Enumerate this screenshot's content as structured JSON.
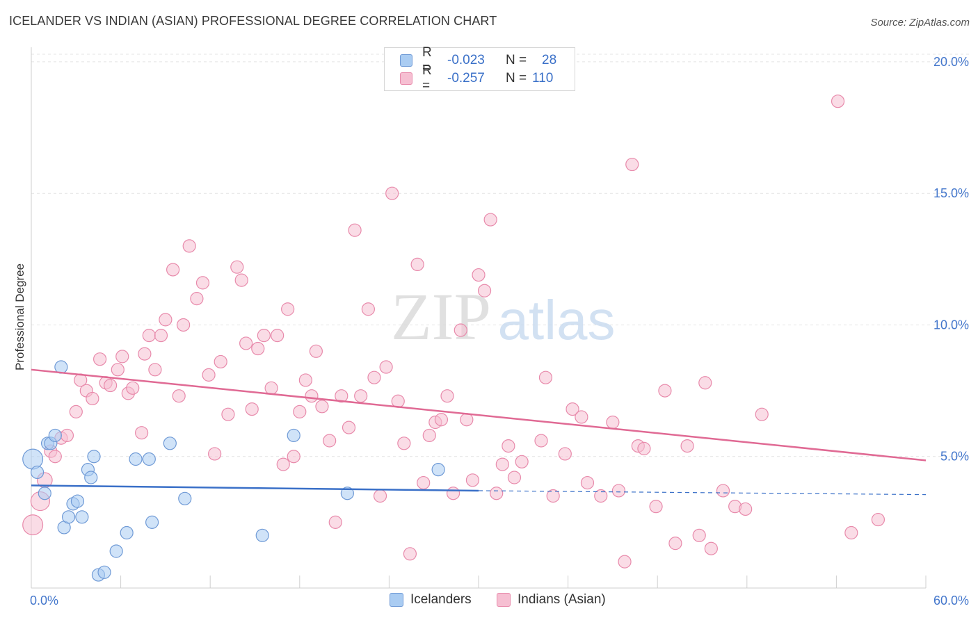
{
  "title": "ICELANDER VS INDIAN (ASIAN) PROFESSIONAL DEGREE CORRELATION CHART",
  "source": "Source: ZipAtlas.com",
  "watermark": {
    "zip": "ZIP",
    "atlas": "atlas"
  },
  "legend": {
    "rows": [
      {
        "r_label": "R =",
        "r_value": "-0.023",
        "n_label": "N =",
        "n_value": "28"
      },
      {
        "r_label": "R =",
        "r_value": "-0.257",
        "n_label": "N =",
        "n_value": "110"
      }
    ]
  },
  "bottom_legend": {
    "icelanders": "Icelanders",
    "indians": "Indians (Asian)"
  },
  "colors": {
    "blue_fill": "#aaccf2",
    "blue_stroke": "#6f9ad6",
    "blue_line": "#3a70c8",
    "pink_fill": "#f6bfd2",
    "pink_stroke": "#e88aab",
    "pink_line": "#e06a94",
    "tick_text": "#4477cc"
  },
  "chart_data": {
    "type": "scatter",
    "title": "ICELANDER VS INDIAN (ASIAN) PROFESSIONAL DEGREE CORRELATION CHART",
    "ylabel": "Professional Degree",
    "xlim": [
      0,
      60
    ],
    "ylim": [
      0,
      20.5
    ],
    "x_tick_labels": [
      "0.0%",
      "60.0%"
    ],
    "y_ticks": [
      5,
      10,
      15,
      20
    ],
    "y_tick_labels": [
      "5.0%",
      "10.0%",
      "15.0%",
      "20.0%"
    ],
    "grid": "horizontal dashed",
    "legend_position": "top-center",
    "series": [
      {
        "name": "Icelanders",
        "r": -0.023,
        "n": 28,
        "trend": {
          "x": [
            0,
            30
          ],
          "y": [
            3.9,
            3.7
          ],
          "dashed_extension_to_x": 60,
          "dashed_end_y": 3.55
        },
        "points": [
          [
            0.1,
            4.9,
            1.6
          ],
          [
            0.4,
            4.4,
            1
          ],
          [
            0.9,
            3.6,
            1
          ],
          [
            1.1,
            5.5,
            1
          ],
          [
            1.3,
            5.5,
            1
          ],
          [
            1.6,
            5.8,
            1
          ],
          [
            2.0,
            8.4,
            1
          ],
          [
            2.2,
            2.3,
            1
          ],
          [
            2.5,
            2.7,
            1
          ],
          [
            2.8,
            3.2,
            1
          ],
          [
            3.1,
            3.3,
            1
          ],
          [
            3.4,
            2.7,
            1
          ],
          [
            3.8,
            4.5,
            1
          ],
          [
            4.0,
            4.2,
            1
          ],
          [
            4.2,
            5.0,
            1
          ],
          [
            4.5,
            0.5,
            1
          ],
          [
            4.9,
            0.6,
            1
          ],
          [
            5.7,
            1.4,
            1
          ],
          [
            6.4,
            2.1,
            1
          ],
          [
            7.0,
            4.9,
            1
          ],
          [
            7.9,
            4.9,
            1
          ],
          [
            8.1,
            2.5,
            1
          ],
          [
            9.3,
            5.5,
            1
          ],
          [
            10.3,
            3.4,
            1
          ],
          [
            15.5,
            2.0,
            1
          ],
          [
            17.6,
            5.8,
            1
          ],
          [
            21.2,
            3.6,
            1
          ],
          [
            27.3,
            4.5,
            1
          ]
        ]
      },
      {
        "name": "Indians (Asian)",
        "r": -0.257,
        "n": 110,
        "trend": {
          "x": [
            0,
            60
          ],
          "y": [
            8.3,
            4.85
          ]
        },
        "points": [
          [
            0.1,
            2.4,
            1.6
          ],
          [
            0.6,
            3.3,
            1.5
          ],
          [
            0.9,
            4.1,
            1.2
          ],
          [
            1.3,
            5.2,
            1
          ],
          [
            1.6,
            5.0,
            1
          ],
          [
            2.0,
            5.7,
            1
          ],
          [
            2.4,
            5.8,
            1
          ],
          [
            3.0,
            6.7,
            1
          ],
          [
            3.3,
            7.9,
            1
          ],
          [
            3.7,
            7.5,
            1
          ],
          [
            4.1,
            7.2,
            1
          ],
          [
            4.6,
            8.7,
            1
          ],
          [
            5.0,
            7.8,
            1
          ],
          [
            5.3,
            7.7,
            1
          ],
          [
            5.8,
            8.3,
            1
          ],
          [
            6.1,
            8.8,
            1
          ],
          [
            6.5,
            7.4,
            1
          ],
          [
            6.8,
            7.6,
            1
          ],
          [
            7.4,
            5.9,
            1
          ],
          [
            7.6,
            8.9,
            1
          ],
          [
            7.9,
            9.6,
            1
          ],
          [
            8.3,
            8.3,
            1
          ],
          [
            8.7,
            9.6,
            1
          ],
          [
            9.0,
            10.2,
            1
          ],
          [
            9.5,
            12.1,
            1
          ],
          [
            9.9,
            7.3,
            1
          ],
          [
            10.2,
            10.0,
            1
          ],
          [
            10.6,
            13.0,
            1
          ],
          [
            11.1,
            11.0,
            1
          ],
          [
            11.5,
            11.6,
            1
          ],
          [
            11.9,
            8.1,
            1
          ],
          [
            12.3,
            5.1,
            1
          ],
          [
            12.7,
            8.6,
            1
          ],
          [
            13.2,
            6.6,
            1
          ],
          [
            13.8,
            12.2,
            1
          ],
          [
            14.1,
            11.7,
            1
          ],
          [
            14.4,
            9.3,
            1
          ],
          [
            14.8,
            6.8,
            1
          ],
          [
            15.2,
            9.1,
            1
          ],
          [
            15.6,
            9.6,
            1
          ],
          [
            16.1,
            7.6,
            1
          ],
          [
            16.5,
            9.6,
            1
          ],
          [
            16.9,
            4.7,
            1
          ],
          [
            17.2,
            10.6,
            1
          ],
          [
            17.6,
            5.0,
            1
          ],
          [
            18.0,
            6.7,
            1
          ],
          [
            18.4,
            7.9,
            1
          ],
          [
            18.8,
            7.3,
            1
          ],
          [
            19.1,
            9.0,
            1
          ],
          [
            19.5,
            6.9,
            1
          ],
          [
            20.0,
            5.6,
            1
          ],
          [
            20.4,
            2.5,
            1
          ],
          [
            20.8,
            7.3,
            1
          ],
          [
            21.3,
            6.1,
            1
          ],
          [
            21.7,
            13.6,
            1
          ],
          [
            22.1,
            7.3,
            1
          ],
          [
            22.6,
            10.6,
            1
          ],
          [
            23.0,
            8.0,
            1
          ],
          [
            23.4,
            3.5,
            1
          ],
          [
            23.8,
            8.4,
            1
          ],
          [
            24.2,
            15.0,
            1
          ],
          [
            24.6,
            7.1,
            1
          ],
          [
            25.0,
            5.5,
            1
          ],
          [
            25.4,
            1.3,
            1
          ],
          [
            25.9,
            12.3,
            1
          ],
          [
            26.3,
            4.0,
            1
          ],
          [
            26.7,
            5.8,
            1
          ],
          [
            27.1,
            6.3,
            1
          ],
          [
            27.5,
            6.4,
            1
          ],
          [
            27.9,
            7.3,
            1
          ],
          [
            28.3,
            3.6,
            1
          ],
          [
            28.8,
            9.8,
            1
          ],
          [
            29.2,
            6.4,
            1
          ],
          [
            29.6,
            4.1,
            1
          ],
          [
            30.0,
            11.9,
            1
          ],
          [
            30.4,
            11.3,
            1
          ],
          [
            30.8,
            14.0,
            1
          ],
          [
            31.2,
            3.6,
            1
          ],
          [
            31.6,
            4.7,
            1
          ],
          [
            32.0,
            5.4,
            1
          ],
          [
            32.4,
            4.2,
            1
          ],
          [
            32.9,
            4.8,
            1
          ],
          [
            34.2,
            5.6,
            1
          ],
          [
            34.5,
            8.0,
            1
          ],
          [
            35.0,
            3.5,
            1
          ],
          [
            35.8,
            5.1,
            1
          ],
          [
            36.3,
            6.8,
            1
          ],
          [
            36.9,
            6.5,
            1
          ],
          [
            37.3,
            4.0,
            1
          ],
          [
            38.2,
            3.5,
            1
          ],
          [
            39.0,
            6.3,
            1
          ],
          [
            39.4,
            3.7,
            1
          ],
          [
            39.8,
            1.0,
            1
          ],
          [
            40.3,
            16.1,
            1
          ],
          [
            40.7,
            5.4,
            1
          ],
          [
            41.1,
            5.3,
            1
          ],
          [
            41.9,
            3.1,
            1
          ],
          [
            42.5,
            7.5,
            1
          ],
          [
            43.2,
            1.7,
            1
          ],
          [
            44.0,
            5.4,
            1
          ],
          [
            44.8,
            2.0,
            1
          ],
          [
            45.2,
            7.8,
            1
          ],
          [
            45.6,
            1.5,
            1
          ],
          [
            46.4,
            3.7,
            1
          ],
          [
            47.2,
            3.1,
            1
          ],
          [
            47.9,
            3.0,
            1
          ],
          [
            49.0,
            6.6,
            1
          ],
          [
            54.1,
            18.5,
            1
          ],
          [
            55.0,
            2.1,
            1
          ],
          [
            56.8,
            2.6,
            1
          ]
        ]
      }
    ]
  }
}
